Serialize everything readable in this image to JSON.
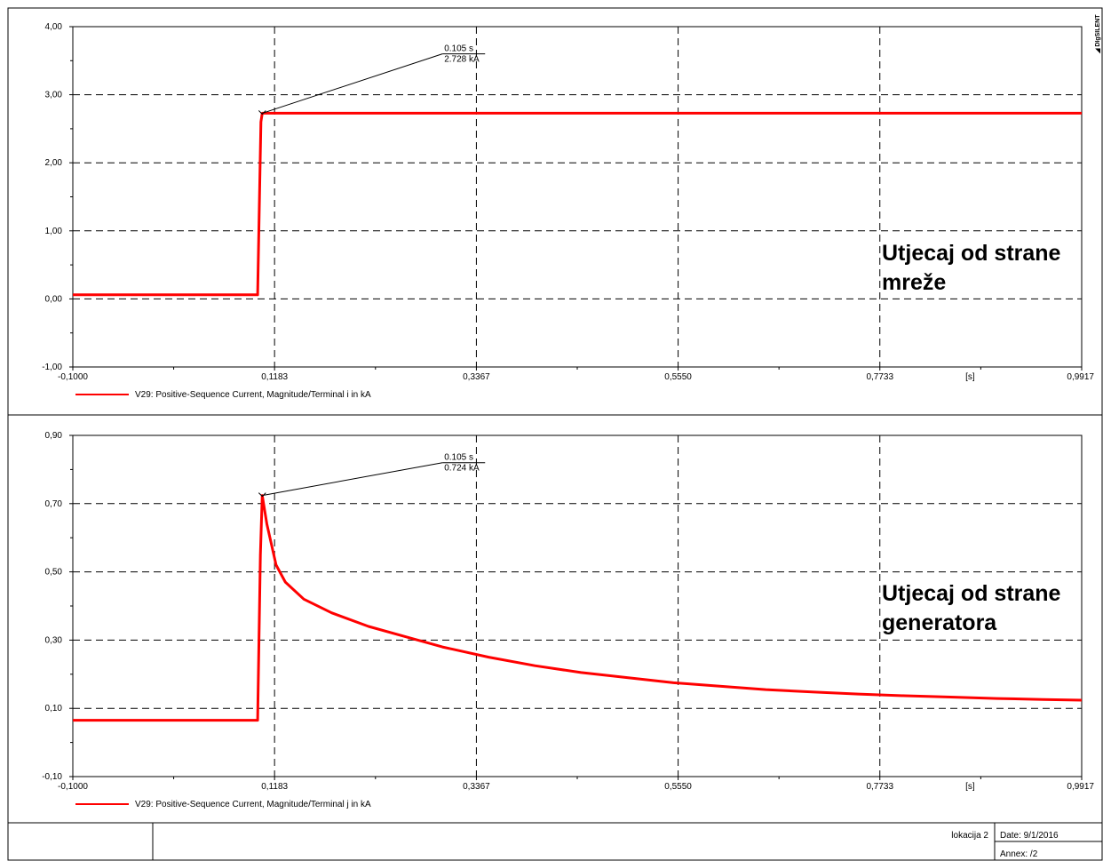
{
  "logo_text": "◢ DIgSILENT",
  "chart_data": [
    {
      "type": "line",
      "x_ticks": [
        "-0,1000",
        "0,1183",
        "0,3367",
        "0,5550",
        "0,7733",
        "0,9917"
      ],
      "x_values": [
        -0.1,
        0.1183,
        0.3367,
        0.555,
        0.7733,
        0.9917
      ],
      "x_unit": "[s]",
      "xlim": [
        -0.1,
        0.9917
      ],
      "y_ticks": [
        "-1,00",
        "0,00",
        "1,00",
        "2,00",
        "3,00",
        "4,00"
      ],
      "y_values": [
        -1,
        0,
        1,
        2,
        3,
        4
      ],
      "ylim": [
        -1,
        4
      ],
      "grid": true,
      "series": [
        {
          "name": "V29: Positive-Sequence Current, Magnitude/Terminal i in kA",
          "color": "#ff0000",
          "points": [
            [
              -0.1,
              0.06
            ],
            [
              0.1,
              0.06
            ],
            [
              0.1035,
              2.6
            ],
            [
              0.105,
              2.728
            ],
            [
              0.9917,
              2.728
            ]
          ]
        }
      ],
      "annotation": {
        "time": "0.105 s",
        "value": "2.728 kA",
        "x": 0.105,
        "y": 2.728,
        "label_x": 0.3,
        "label_y": 3.6
      },
      "overlay_text": [
        "Utjecaj od strane",
        "mreže"
      ]
    },
    {
      "type": "line",
      "x_ticks": [
        "-0,1000",
        "0,1183",
        "0,3367",
        "0,5550",
        "0,7733",
        "0,9917"
      ],
      "x_values": [
        -0.1,
        0.1183,
        0.3367,
        0.555,
        0.7733,
        0.9917
      ],
      "x_unit": "[s]",
      "xlim": [
        -0.1,
        0.9917
      ],
      "y_ticks": [
        "-0,10",
        "0,10",
        "0,30",
        "0,50",
        "0,70",
        "0,90"
      ],
      "y_values": [
        -0.1,
        0.1,
        0.3,
        0.5,
        0.7,
        0.9
      ],
      "ylim": [
        -0.1,
        0.9
      ],
      "grid": true,
      "series": [
        {
          "name": "V29: Positive-Sequence Current, Magnitude/Terminal j in kA",
          "color": "#ff0000",
          "points": [
            [
              -0.1,
              0.065
            ],
            [
              0.1,
              0.065
            ],
            [
              0.103,
              0.55
            ],
            [
              0.105,
              0.724
            ],
            [
              0.11,
              0.64
            ],
            [
              0.12,
              0.52
            ],
            [
              0.13,
              0.47
            ],
            [
              0.15,
              0.42
            ],
            [
              0.18,
              0.38
            ],
            [
              0.22,
              0.34
            ],
            [
              0.26,
              0.31
            ],
            [
              0.3,
              0.28
            ],
            [
              0.35,
              0.25
            ],
            [
              0.4,
              0.225
            ],
            [
              0.45,
              0.205
            ],
            [
              0.5,
              0.19
            ],
            [
              0.55,
              0.175
            ],
            [
              0.6,
              0.165
            ],
            [
              0.65,
              0.155
            ],
            [
              0.7,
              0.148
            ],
            [
              0.75,
              0.142
            ],
            [
              0.8,
              0.137
            ],
            [
              0.85,
              0.133
            ],
            [
              0.9,
              0.129
            ],
            [
              0.95,
              0.126
            ],
            [
              0.9917,
              0.124
            ]
          ]
        }
      ],
      "annotation": {
        "time": "0.105 s",
        "value": "0.724 kA",
        "x": 0.105,
        "y": 0.724,
        "label_x": 0.3,
        "label_y": 0.82
      },
      "overlay_text": [
        "Utjecaj od strane",
        "generatora"
      ]
    }
  ],
  "footer": {
    "location": "lokacija 2",
    "date": "Date: 9/1/2016",
    "annex": "Annex:  /2"
  }
}
